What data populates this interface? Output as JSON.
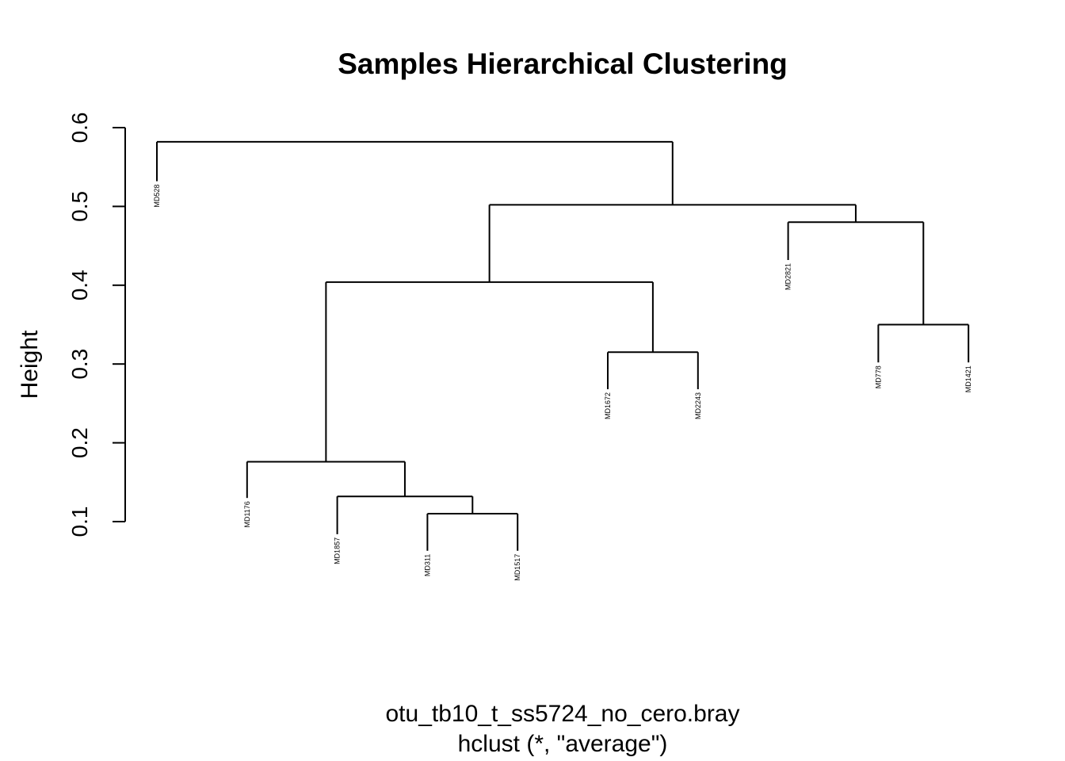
{
  "chart_data": {
    "type": "dendrogram",
    "title": "Samples Hierarchical Clustering",
    "xlabel": "otu_tb10_t_ss5724_no_cero.bray",
    "sublabel": "hclust (*, \"average\")",
    "ylabel": "Height",
    "ylim": [
      0.1,
      0.6
    ],
    "yticks": [
      "0.1",
      "0.2",
      "0.3",
      "0.4",
      "0.5",
      "0.6"
    ],
    "leaves": [
      "MD528",
      "MD1176",
      "MD1857",
      "MD311",
      "MD1517",
      "MD1672",
      "MD2243",
      "MD2821",
      "MD778",
      "MD1421"
    ],
    "merges": [
      {
        "left": "MD311",
        "right": "MD1517",
        "height": 0.11
      },
      {
        "left": "MD1857",
        "right": "MD311+MD1517",
        "height": 0.132
      },
      {
        "left": "MD1176",
        "right": "MD1857+MD311+MD1517",
        "height": 0.176
      },
      {
        "left": "MD1672",
        "right": "MD2243",
        "height": 0.315
      },
      {
        "left": "MD778",
        "right": "MD1421",
        "height": 0.35
      },
      {
        "left": "MD1176..MD1517",
        "right": "MD1672+MD2243",
        "height": 0.404
      },
      {
        "left": "MD2821",
        "right": "MD778+MD1421",
        "height": 0.48
      },
      {
        "left": "MD1176..MD2243",
        "right": "MD2821..MD1421",
        "height": 0.502
      },
      {
        "left": "MD528",
        "right": "rest",
        "height": 0.582
      }
    ],
    "leaf_heights": {
      "MD528": 0.532,
      "MD1176": 0.13,
      "MD1857": 0.084,
      "MD311": 0.063,
      "MD1517": 0.063,
      "MD1672": 0.268,
      "MD2243": 0.268,
      "MD2821": 0.432,
      "MD778": 0.302,
      "MD1421": 0.302
    }
  }
}
